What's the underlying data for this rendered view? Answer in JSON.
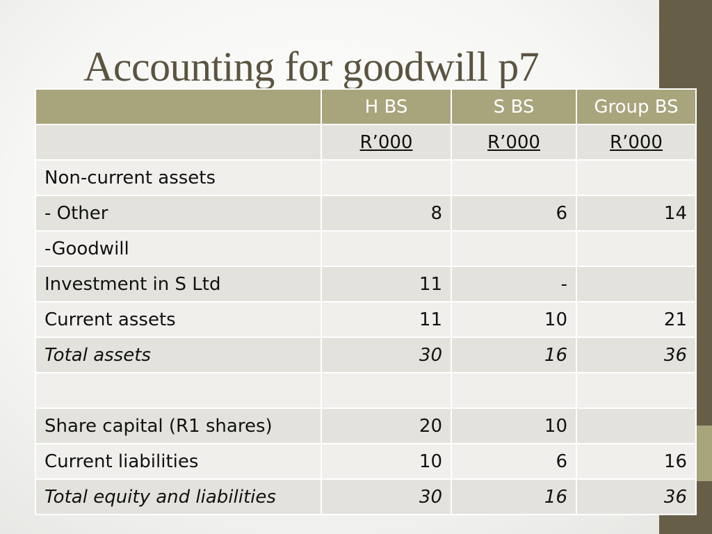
{
  "slide": {
    "title": "Accounting for goodwill p7"
  },
  "table": {
    "header": [
      "",
      "H BS",
      "S BS",
      "Group BS"
    ],
    "rows": [
      [
        "",
        "R’000",
        "R’000",
        "R’000"
      ],
      [
        "Non-current assets",
        "",
        "",
        ""
      ],
      [
        "- Other",
        "8",
        "6",
        "14"
      ],
      [
        "-Goodwill",
        "",
        "",
        ""
      ],
      [
        "Investment in S Ltd",
        "11",
        "-",
        ""
      ],
      [
        "Current assets",
        "11",
        "10",
        "21"
      ],
      [
        "Total assets",
        "30",
        "16",
        "36"
      ],
      [
        "",
        "",
        "",
        ""
      ],
      [
        "Share capital (R1 shares)",
        "20",
        "10",
        ""
      ],
      [
        "Current liabilities",
        "10",
        "6",
        "16"
      ],
      [
        "Total equity and liabilities",
        "30",
        "16",
        "36"
      ]
    ]
  },
  "colors": {
    "header_fill": "#a8a47c",
    "band_dark": "#e3e2dc",
    "band_light": "#f0efeb",
    "side_bar": "#675e48",
    "title": "#5a5440"
  }
}
